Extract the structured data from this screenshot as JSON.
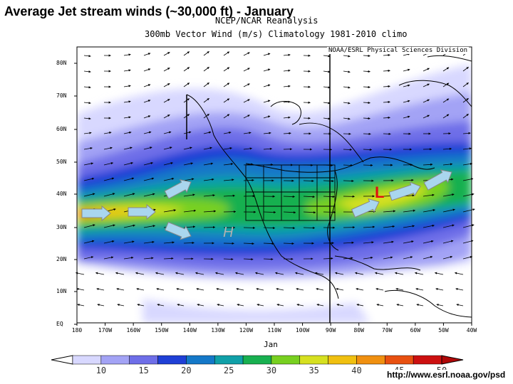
{
  "title": "Average Jet stream winds (~30,000 ft) - January",
  "header_line1": "NCEP/NCAR Reanalysis",
  "header_line2": "300mb Vector Wind (m/s) Climatology 1981-2010 climo",
  "credit": "NOAA/ESRL Physical Sciences Division",
  "latitude_labels": [
    "80N",
    "70N",
    "60N",
    "50N",
    "40N",
    "30N",
    "20N",
    "10N",
    "EQ"
  ],
  "longitude_labels": [
    "180",
    "170W",
    "160W",
    "150W",
    "140W",
    "130W",
    "120W",
    "110W",
    "100W",
    "90W",
    "80W",
    "70W",
    "60W",
    "50W",
    "40W"
  ],
  "month": "Jan",
  "colorbar_labels": [
    "10",
    "15",
    "20",
    "25",
    "30",
    "35",
    "40",
    "45",
    "50"
  ],
  "colorbar_colors": [
    "#d8d8ff",
    "#a3a3f5",
    "#6e6ee8",
    "#1f3fd6",
    "#1478c8",
    "#10a0a8",
    "#18b050",
    "#78d020",
    "#d6e020",
    "#f0c010",
    "#f09010",
    "#e85010",
    "#cc1010"
  ],
  "h_marker": "H",
  "low_marker": "L",
  "url": "http://www.esrl.noaa.gov/psd",
  "annotation_arrow_color": "#a9d6ee"
}
